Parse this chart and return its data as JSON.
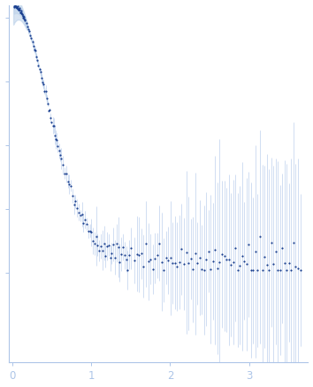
{
  "title": "",
  "xlabel": "",
  "ylabel": "",
  "xlim": [
    -0.05,
    3.75
  ],
  "ylim": [
    -0.35,
    1.05
  ],
  "x_ticks": [
    0,
    1,
    2,
    3
  ],
  "bg_color": "#ffffff",
  "dot_color": "#1a3f8f",
  "error_color": "#adc5e8",
  "shade_color": "#b8cfe8",
  "fig_width": 3.54,
  "fig_height": 4.37,
  "dpi": 100
}
